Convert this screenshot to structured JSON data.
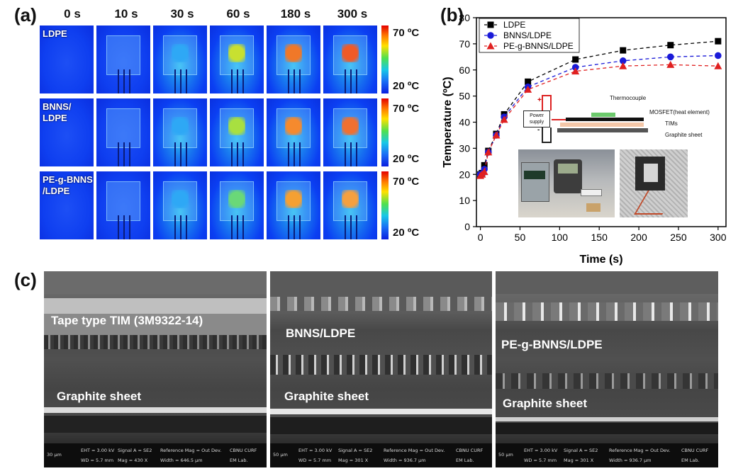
{
  "panel_a": {
    "label": "(a)",
    "times": [
      "0 s",
      "10 s",
      "30 s",
      "60 s",
      "180 s",
      "300 s"
    ],
    "rows": [
      {
        "text": "LDPE",
        "heat": [
          "cold",
          "cold",
          "#2ea8f5",
          "#c8e030",
          "#f07828",
          "#f05a28"
        ]
      },
      {
        "text": "BNNS/\nLDPE",
        "heat": [
          "cold",
          "cold",
          "#2ea8f5",
          "#a8e040",
          "#f58a2e",
          "#f07030"
        ]
      },
      {
        "text": "PE-g-BNNS\n/LDPE",
        "heat": [
          "cold",
          "cold",
          "#2ea8f5",
          "#6ad878",
          "#f5a032",
          "#f5a040"
        ]
      }
    ],
    "colorbar_max": "70 ºC",
    "colorbar_min": "20 ºC"
  },
  "panel_b": {
    "label": "(b)",
    "chart_data": {
      "type": "line",
      "xlabel": "Time (s)",
      "ylabel": "Temperature (ºC)",
      "xlim": [
        -5,
        310
      ],
      "ylim": [
        0,
        80
      ],
      "xticks": [
        0,
        50,
        100,
        150,
        200,
        250,
        300
      ],
      "yticks": [
        0,
        10,
        20,
        30,
        40,
        50,
        60,
        70,
        80
      ],
      "series": [
        {
          "name": "LDPE",
          "marker": "square",
          "color": "#000000",
          "x": [
            0,
            2,
            5,
            10,
            20,
            30,
            60,
            120,
            180,
            240,
            300
          ],
          "y": [
            20,
            20.5,
            23.5,
            29,
            35.5,
            43,
            55.5,
            64,
            67.5,
            69.5,
            71
          ]
        },
        {
          "name": "BNNS/LDPE",
          "marker": "circle",
          "color": "#1a1ad8",
          "x": [
            0,
            2,
            5,
            10,
            20,
            30,
            60,
            120,
            180,
            240,
            300
          ],
          "y": [
            20,
            20.2,
            22,
            28.5,
            35,
            42,
            53.5,
            61,
            63.5,
            65,
            65.5
          ]
        },
        {
          "name": "PE-g-BNNS/LDPE",
          "marker": "triangle",
          "color": "#e02020",
          "x": [
            0,
            2,
            5,
            10,
            20,
            30,
            60,
            120,
            180,
            240,
            300
          ],
          "y": [
            19.5,
            20,
            21,
            28.5,
            35,
            41,
            52.5,
            59.5,
            61.5,
            62,
            61.5
          ]
        }
      ]
    },
    "inset": {
      "power_supply": "Power\nsupply",
      "plus": "+",
      "minus": "-",
      "thermocouple": "Thermocouple",
      "mosfet": "MOSFET(heat element)",
      "tims": "TIMs",
      "graphite": "Graphite sheet"
    }
  },
  "panel_c": {
    "label": "(c)",
    "images": [
      {
        "top_label": "Tape type TIM (3M9322-14)",
        "bottom_label": "Graphite sheet",
        "scale": "30 μm",
        "eht": "EHT = 3.00 kV",
        "wd": "WD = 5.7 mm",
        "signal": "Signal A = SE2",
        "mag": "Mag = 430 X",
        "ref": "Reference Mag = Out Dev.",
        "width": "Width = 646.5 μm",
        "lab1": "CBNU CURF",
        "lab2": "EM Lab."
      },
      {
        "top_label": "BNNS/LDPE",
        "bottom_label": "Graphite sheet",
        "scale": "50 μm",
        "eht": "EHT = 3.00 kV",
        "wd": "WD = 5.7 mm",
        "signal": "Signal A = SE2",
        "mag": "Mag = 301 X",
        "ref": "Reference Mag = Out Dev.",
        "width": "Width = 936.7 μm",
        "lab1": "CBNU CURF",
        "lab2": "EM Lab."
      },
      {
        "top_label": "PE-g-BNNS/LDPE",
        "bottom_label": "Graphite sheet",
        "scale": "50 μm",
        "eht": "EHT = 3.00 kV",
        "wd": "WD = 5.7 mm",
        "signal": "Signal A = SE2",
        "mag": "Mag = 301 X",
        "ref": "Reference Mag = Out Dev.",
        "width": "Width = 936.7 μm",
        "lab1": "CBNU CURF",
        "lab2": "EM Lab."
      }
    ]
  }
}
